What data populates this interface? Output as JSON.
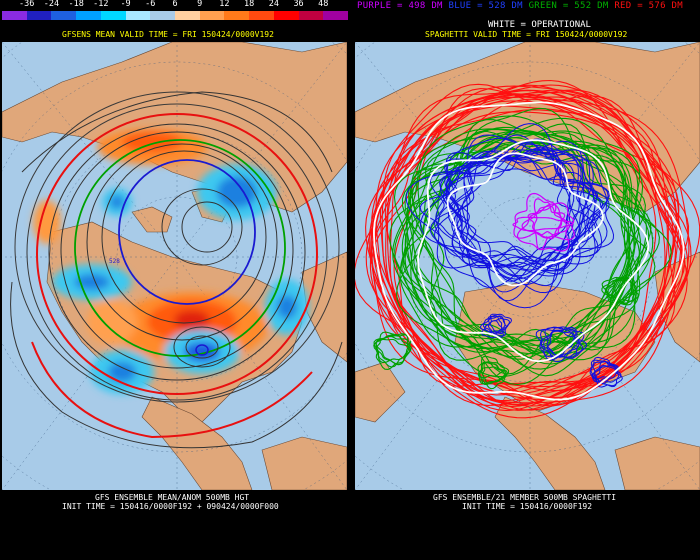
{
  "colorbar": {
    "ticks": [
      "-36",
      "-24",
      "-18",
      "-12",
      "-9",
      "-6",
      "6",
      "9",
      "12",
      "18",
      "24",
      "36",
      "48"
    ],
    "colors": [
      "#8a2be2",
      "#2020c0",
      "#1e60e0",
      "#00a0ff",
      "#00d8ff",
      "#a8e8ff",
      "#a8cbe8",
      "#ffd0a0",
      "#ffa050",
      "#ff7a1a",
      "#ff4a10",
      "#ff0000",
      "#c00040",
      "#a000a0"
    ]
  },
  "left_panel": {
    "subtitle": "GFSENS MEAN VALID TIME = FRI 150424/0000V192",
    "footer_line1": "GFS ENSEMBLE MEAN/ANOM 500MB HGT",
    "footer_line2": "INIT TIME = 150416/0000F192 + 090424/0000F000",
    "contour_label": "528"
  },
  "right_panel": {
    "legend": {
      "purple": "PURPLE = 498 DM",
      "blue": "BLUE = 528 DM",
      "green": "GREEN = 552 DM",
      "red": "RED = 576 DM"
    },
    "operational": "WHITE = OPERATIONAL",
    "subtitle": "SPAGHETTI VALID TIME = FRI 150424/0000V192",
    "footer_line1": "GFS ENSEMBLE/21 MEMBER 500MB SPAGHETTI",
    "footer_line2": "INIT TIME = 150416/0000F192"
  },
  "colors": {
    "ocean": "#a8cbe8",
    "land": "#e0a77a",
    "purple": "#cc00ff",
    "blue": "#1010e0",
    "green": "#00a000",
    "red": "#ff1010",
    "white": "#ffffff",
    "subtitle": "#ffff00"
  }
}
